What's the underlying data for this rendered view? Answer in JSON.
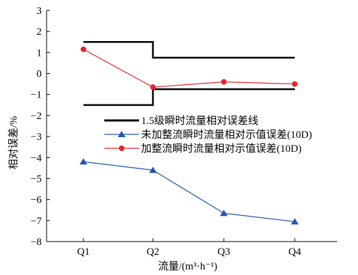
{
  "chart_data": {
    "type": "line",
    "xlabel": "流量/(m³·h⁻¹)",
    "ylabel": "相对误差/%",
    "categories": [
      "Q1",
      "Q2",
      "Q3",
      "Q4"
    ],
    "ylim": [
      -8,
      3
    ],
    "yticks": [
      "3",
      "2",
      "1",
      "0",
      "−1",
      "−2",
      "−3",
      "−4",
      "−5",
      "−6",
      "−7",
      "−8"
    ],
    "grid": false,
    "legend_position": "middle-right",
    "series": [
      {
        "name": "1.5级瞬时流量相对误差线",
        "kind": "step-limit",
        "color": "#000000",
        "upper": [
          1.5,
          0.75,
          0.75,
          0.75
        ],
        "lower": [
          -1.5,
          -0.75,
          -0.75,
          -0.75
        ]
      },
      {
        "name": "未加整流瞬时流量相对示值误差(10D)",
        "kind": "line",
        "marker": "triangle",
        "color": "#2255b0",
        "values": [
          -4.2,
          -4.6,
          -6.65,
          -7.05
        ]
      },
      {
        "name": "加整流瞬时流量相对示值误差(10D)",
        "kind": "line",
        "marker": "circle",
        "color": "#e8232a",
        "values": [
          1.15,
          -0.65,
          -0.4,
          -0.5
        ]
      }
    ]
  }
}
